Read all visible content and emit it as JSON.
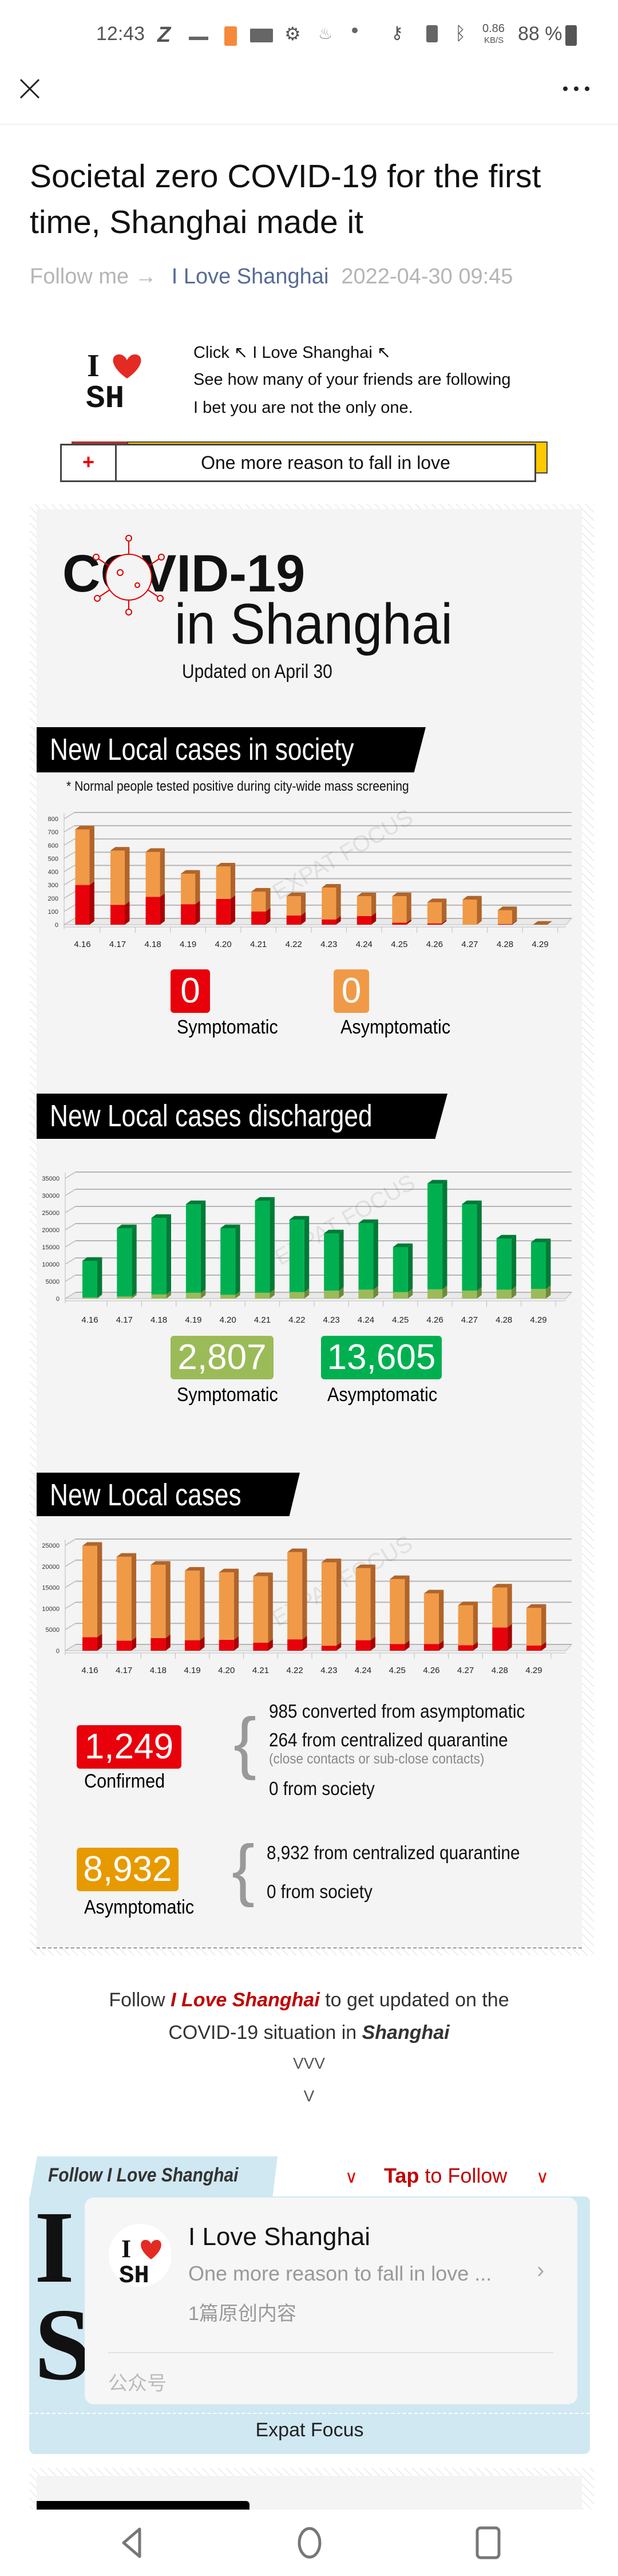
{
  "status_bar": {
    "time": "12:43",
    "net_speed": "0.86",
    "net_unit": "KB/S",
    "battery": "88 %"
  },
  "article": {
    "title": "Societal zero COVID-19 for the first time, Shanghai made it",
    "follow_prefix": "Follow me →",
    "account": "I Love Shanghai",
    "datetime": "2022-04-30 09:45"
  },
  "promo": {
    "logo_text": "I ♥ SH",
    "line1": "Click ↖ I Love Shanghai ↖",
    "line2": "See how many of your friends are following",
    "line3": "I bet you are not the only one.",
    "plus": "+",
    "box_text": "One more reason to fall in love"
  },
  "infographic": {
    "title_covid": "COVID-19",
    "title_place": "in Shanghai",
    "updated": "Updated on April 30",
    "watermark": "EXPAT FOCUS",
    "society": {
      "symptomatic": "0",
      "symptomatic_label": "Symptomatic",
      "asymptomatic": "0",
      "asymptomatic_label": "Asymptomatic"
    },
    "discharged": {
      "symptomatic": "2,807",
      "symptomatic_label": "Symptomatic",
      "asymptomatic": "13,605",
      "asymptomatic_label": "Asymptomatic"
    },
    "new_local": {
      "confirmed": "1,249",
      "confirmed_label": "Confirmed",
      "confirmed_lines": [
        "985  converted from asymptomatic",
        "264 from centralized quarantine",
        "(close contacts or sub-close contacts)",
        "0 from society"
      ],
      "asymptomatic": "8,932",
      "asymptomatic_label": "Asymptomatic",
      "asymptomatic_lines": [
        "8,932 from centralized quarantine",
        "0 from society"
      ]
    }
  },
  "follow_cta": {
    "pre": "Follow ",
    "brand": "I Love Shanghai",
    "post": " to get updated on the",
    "line2_pre": "COVID-19 situation in ",
    "line2_em": "Shanghai",
    "arrows1": "VVV",
    "arrows2": "V"
  },
  "follow_card": {
    "tab": "Follow I Love Shanghai",
    "tap": "Tap",
    "to_follow": " to Follow",
    "name": "I Love Shanghai",
    "desc": "One more reason to fall in love ...",
    "count": "1篇原创内容",
    "type": "公众号",
    "footer": "Expat Focus",
    "big_letters": "IS"
  },
  "colors": {
    "red": "#e8000a",
    "orange": "#f09a48",
    "green": "#00b050",
    "light_green": "#9bbb59",
    "amber": "#e69a00",
    "link": "#576b95",
    "cta_red": "#c00000"
  },
  "chart_data": [
    {
      "type": "bar",
      "stacked": true,
      "title": "New Local cases in society",
      "subtitle": "* Normal people tested positive during city-wide mass screening",
      "categories": [
        "4.16",
        "4.17",
        "4.18",
        "4.19",
        "4.20",
        "4.21",
        "4.22",
        "4.23",
        "4.24",
        "4.25",
        "4.26",
        "4.27",
        "4.28",
        "4.29"
      ],
      "ylim": [
        0,
        800
      ],
      "yticks": [
        0,
        100,
        200,
        300,
        400,
        500,
        600,
        700,
        800
      ],
      "grid": true,
      "series": [
        {
          "values": [
            300,
            150,
            210,
            155,
            195,
            100,
            70,
            40,
            65,
            15,
            10,
            0,
            5,
            0
          ],
          "color": "#e8000a",
          "side": "#a80000"
        },
        {
          "values": [
            420,
            410,
            340,
            230,
            245,
            150,
            145,
            240,
            150,
            200,
            160,
            190,
            105,
            0
          ],
          "color": "#f09a48",
          "side": "#b0642a"
        }
      ]
    },
    {
      "type": "bar",
      "stacked": true,
      "title": "New Local cases discharged",
      "categories": [
        "4.16",
        "4.17",
        "4.18",
        "4.19",
        "4.20",
        "4.21",
        "4.22",
        "4.23",
        "4.24",
        "4.25",
        "4.26",
        "4.27",
        "4.28",
        "4.29"
      ],
      "ylim": [
        0,
        35000
      ],
      "yticks": [
        0,
        5000,
        10000,
        15000,
        20000,
        25000,
        30000,
        35000
      ],
      "grid": true,
      "series": [
        {
          "values": [
            300,
            600,
            1200,
            1700,
            1100,
            1700,
            1900,
            2300,
            2600,
            1900,
            2700,
            2300,
            2600,
            2807
          ],
          "color": "#9bbb59",
          "side": "#6d8a3a"
        },
        {
          "values": [
            10700,
            19900,
            22300,
            25800,
            19400,
            26800,
            21100,
            16700,
            19400,
            13100,
            30800,
            25200,
            14900,
            13605
          ],
          "color": "#00b050",
          "side": "#007a36"
        }
      ]
    },
    {
      "type": "bar",
      "stacked": true,
      "title": "New Local cases",
      "categories": [
        "4.16",
        "4.17",
        "4.18",
        "4.19",
        "4.20",
        "4.21",
        "4.22",
        "4.23",
        "4.24",
        "4.25",
        "4.26",
        "4.27",
        "4.28",
        "4.29"
      ],
      "ylim": [
        0,
        25000
      ],
      "yticks": [
        0,
        5000,
        10000,
        15000,
        20000,
        25000
      ],
      "grid": true,
      "series": [
        {
          "values": [
            3200,
            2400,
            3000,
            2500,
            2600,
            1900,
            2700,
            1200,
            2500,
            1600,
            1600,
            1300,
            5500,
            1249
          ],
          "color": "#e8000a",
          "side": "#a80000"
        },
        {
          "values": [
            21700,
            19900,
            17400,
            16500,
            16000,
            15800,
            20700,
            19800,
            17100,
            15400,
            12000,
            9500,
            9500,
            8932
          ],
          "color": "#f09a48",
          "side": "#b0642a"
        }
      ]
    }
  ]
}
